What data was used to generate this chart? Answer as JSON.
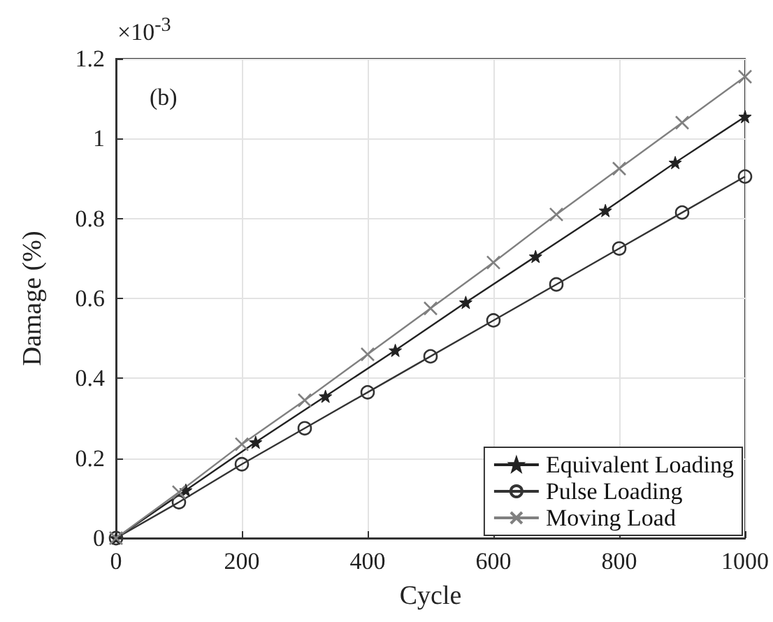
{
  "chart_data": {
    "type": "line",
    "xlabel": "Cycle",
    "ylabel": "Damage (%)",
    "annotations": [
      "×10$^{-3}$",
      "(b)"
    ],
    "xlim": [
      0,
      1000
    ],
    "xticks": [
      0,
      200,
      400,
      600,
      800,
      1000
    ],
    "ylim": [
      0,
      1.2
    ],
    "yticks": [
      0,
      0.2,
      0.4,
      0.6,
      0.8,
      1,
      1.2
    ],
    "grid": true,
    "legend": "bottom right",
    "line_style": "solid",
    "series": [
      {
        "name": "Equivalent Loading",
        "color": "#222222",
        "marker": "star",
        "x": [
          0,
          111,
          222,
          333,
          444,
          556,
          667,
          778,
          889,
          1000
        ],
        "values": [
          0,
          0.12,
          0.24,
          0.355,
          0.47,
          0.59,
          0.705,
          0.82,
          0.94,
          1.055
        ]
      },
      {
        "name": "Pulse Loading",
        "color": "#333333",
        "marker": "circle",
        "x": [
          0,
          100,
          200,
          300,
          400,
          500,
          600,
          700,
          800,
          900,
          1000
        ],
        "values": [
          0,
          0.09,
          0.185,
          0.275,
          0.365,
          0.455,
          0.545,
          0.635,
          0.725,
          0.815,
          0.905
        ]
      },
      {
        "name": "Moving Load",
        "color": "#808080",
        "marker": "cross",
        "x": [
          0,
          100,
          200,
          300,
          400,
          500,
          600,
          700,
          800,
          900,
          1000
        ],
        "values": [
          0,
          0.115,
          0.235,
          0.345,
          0.46,
          0.575,
          0.69,
          0.81,
          0.925,
          1.04,
          1.155
        ]
      }
    ]
  }
}
